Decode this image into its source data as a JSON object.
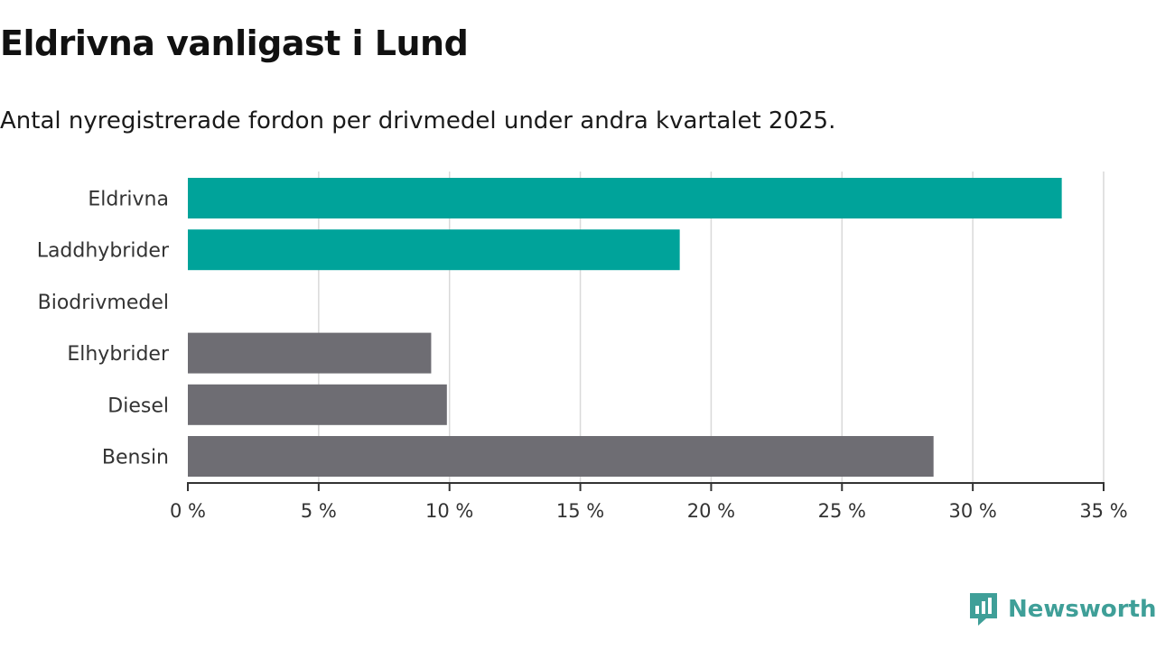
{
  "header": {
    "title": "Eldrivna vanligast i Lund",
    "subtitle": "Antal nyregistrerade fordon per drivmedel under andra kvartalet 2025."
  },
  "brand": {
    "name": "Newsworthy",
    "color": "#3f9f98"
  },
  "chart_data": {
    "type": "bar",
    "orientation": "horizontal",
    "title": "Eldrivna vanligast i Lund",
    "subtitle": "Antal nyregistrerade fordon per drivmedel under andra kvartalet 2025.",
    "xlabel": "",
    "ylabel": "",
    "categories": [
      "Eldrivna",
      "Laddhybrider",
      "Biodrivmedel",
      "Elhybrider",
      "Diesel",
      "Bensin"
    ],
    "values": [
      33.4,
      18.8,
      0,
      9.3,
      9.9,
      28.5
    ],
    "bar_colors": [
      "#00a39a",
      "#00a39a",
      "#00a39a",
      "#6e6d73",
      "#6e6d73",
      "#6e6d73"
    ],
    "xlim": [
      0,
      35
    ],
    "xticks": [
      0,
      5,
      10,
      15,
      20,
      25,
      30,
      35
    ],
    "xtick_labels": [
      "0 %",
      "5 %",
      "10 %",
      "15 %",
      "20 %",
      "25 %",
      "30 %",
      "35 %"
    ],
    "grid": true,
    "legend": "none"
  }
}
